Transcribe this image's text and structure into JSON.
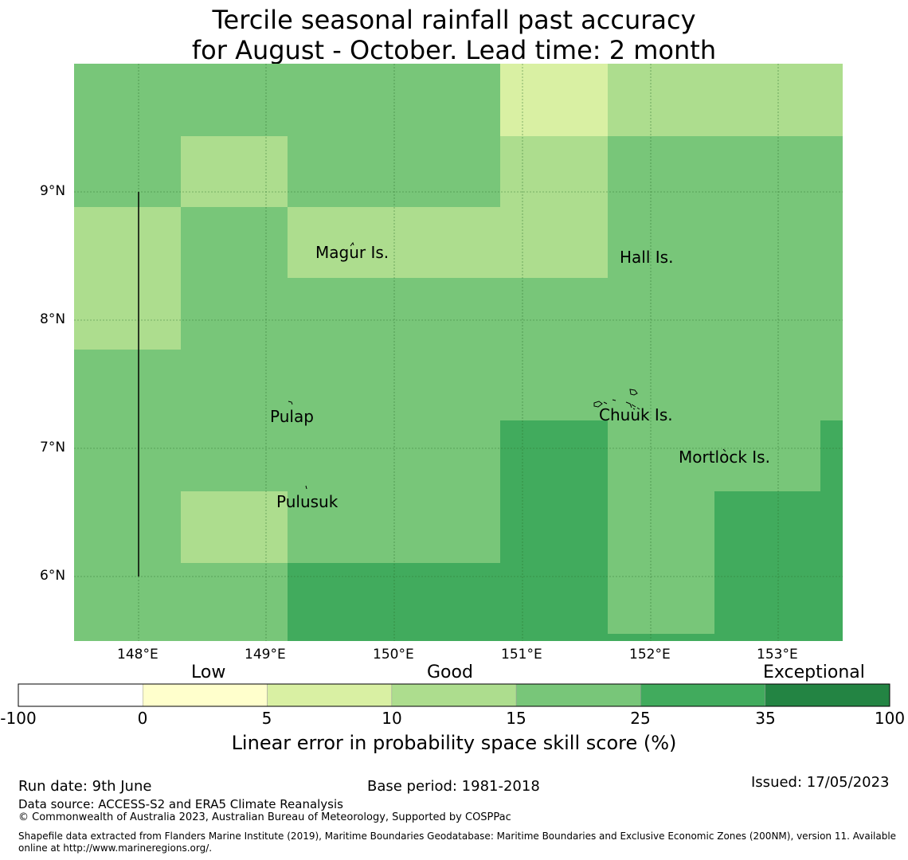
{
  "title": {
    "line1": "Tercile seasonal rainfall past accuracy",
    "line2": "for August - October. Lead time: 2 month"
  },
  "map": {
    "lat_ticks": [
      "9°N",
      "8°N",
      "7°N",
      "6°N"
    ],
    "lon_ticks": [
      "148°E",
      "149°E",
      "150°E",
      "151°E",
      "152°E",
      "153°E"
    ],
    "places": [
      "Magur Is.",
      "Hall Is.",
      "Pulap",
      "Chuuk Is.",
      "Mortlock Is.",
      "Pulusuk"
    ]
  },
  "colorbar": {
    "category_labels": [
      "Low",
      "Good",
      "Exceptional"
    ],
    "ticks": [
      "-100",
      "0",
      "5",
      "10",
      "15",
      "25",
      "35",
      "100"
    ],
    "colors": [
      "#ffffff",
      "#ffffcc",
      "#d9f0a3",
      "#addd8e",
      "#78c679",
      "#41ab5d",
      "#238443"
    ],
    "label": "Linear error in probability space skill score (%)"
  },
  "footer": {
    "run_date": "Run date: 9th June",
    "base_period": "Base period: 1981-2018",
    "issued": "Issued: 17/05/2023",
    "data_source": "Data source: ACCESS-S2 and ERA5 Climate Reanalysis",
    "copyright": "© Commonwealth of Australia 2023, Australian Bureau of Meteorology, Supported by COSPPac",
    "shapefile_line1": "Shapefile data extracted from Flanders Marine Institute (2019), Maritime Boundaries Geodatabase: Maritime Boundaries and Exclusive Economic Zones (200NM), version 11. Available",
    "shapefile_line2": "online at http://www.marineregions.org/."
  }
}
